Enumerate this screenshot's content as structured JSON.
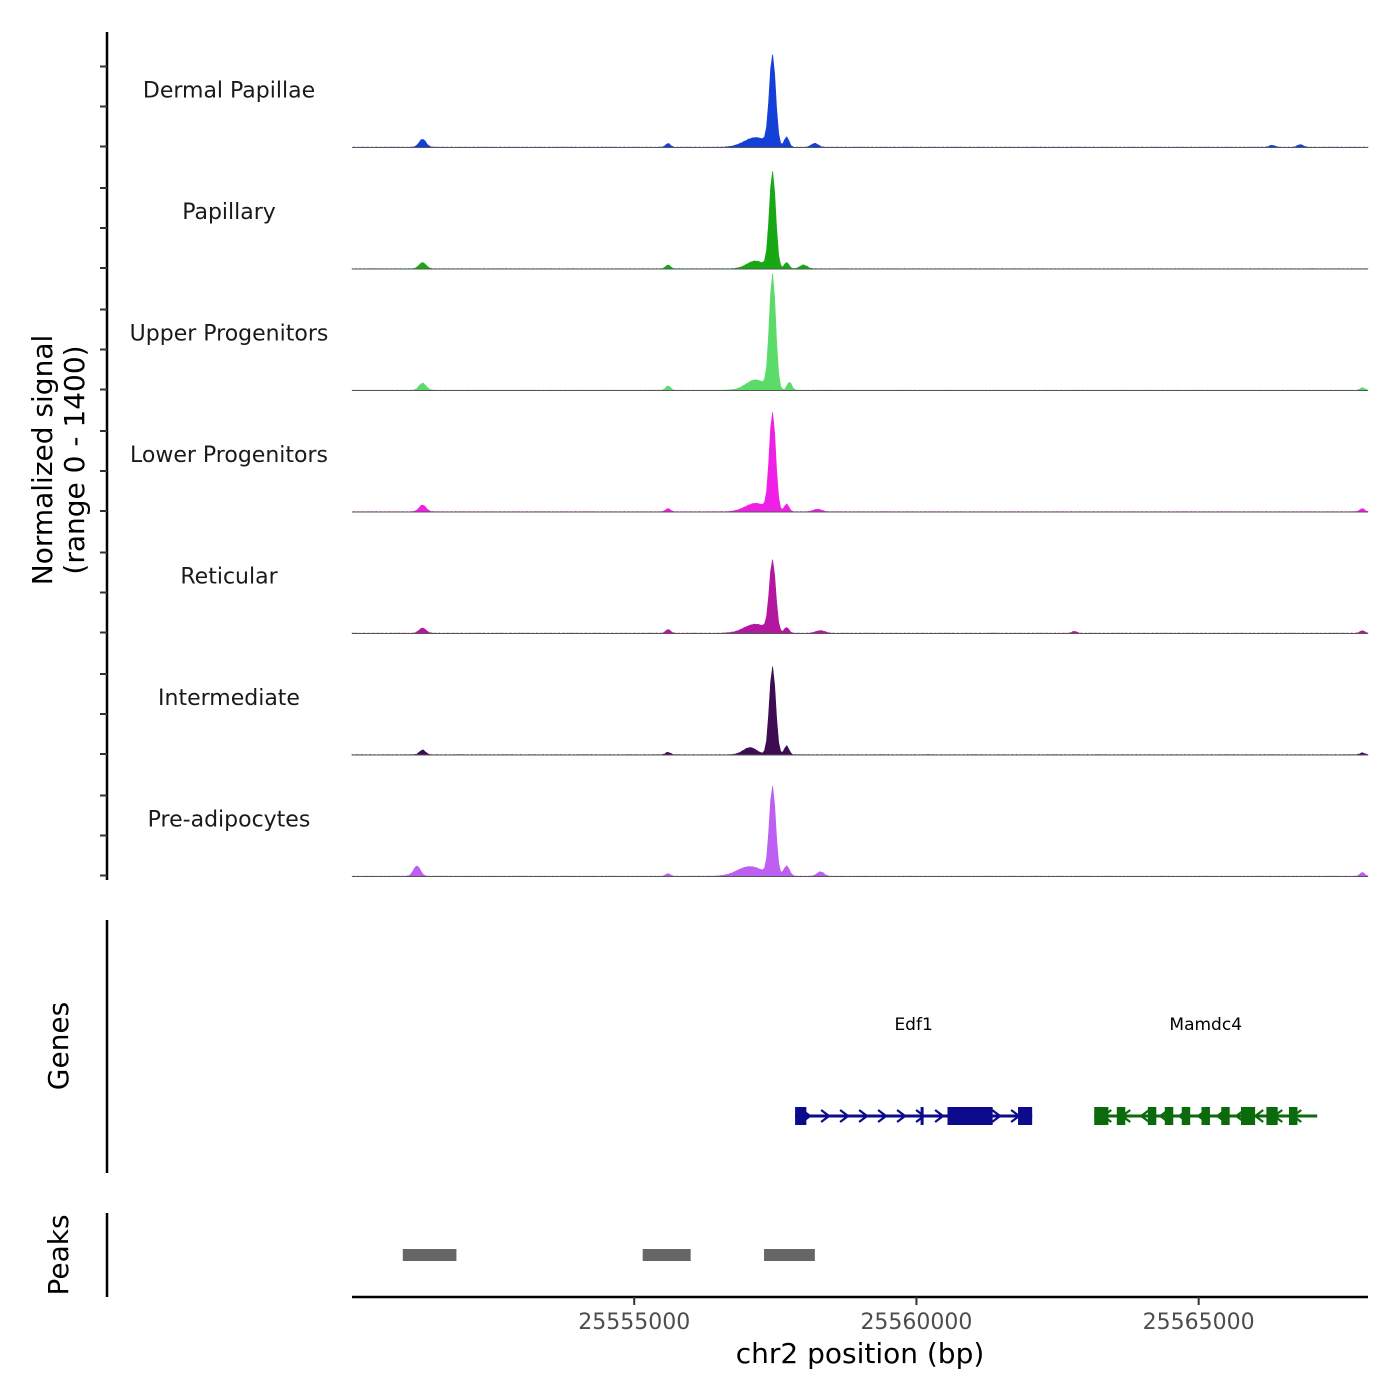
{
  "chart_data": {
    "type": "area",
    "chromosome": "chr2",
    "xlabel": "chr2 position (bp)",
    "xlim": [
      25550000,
      25568000
    ],
    "x_ticks": [
      25555000,
      25560000,
      25565000
    ],
    "x_tick_labels": [
      "25555000",
      "25560000",
      "25565000"
    ],
    "ylabel_line1": "Normalized signal",
    "ylabel_line2": "(range 0 - 1400)",
    "ylim": [
      0,
      1400
    ],
    "genes_title": "Genes",
    "peaks_title": "Peaks",
    "tracks": [
      {
        "name": "Dermal Papillae",
        "color": "#1540D8",
        "peak_height": 1400,
        "bumps": [
          [
            25551250,
            125,
            60
          ],
          [
            25555600,
            60,
            40
          ],
          [
            25557450,
            1400,
            55
          ],
          [
            25557150,
            150,
            200
          ],
          [
            25557700,
            160,
            40
          ],
          [
            25558200,
            60,
            60
          ],
          [
            25566800,
            40,
            50
          ],
          [
            25566300,
            30,
            50
          ]
        ]
      },
      {
        "name": "Papillary",
        "color": "#17A814",
        "peak_height": 1500,
        "bumps": [
          [
            25551250,
            95,
            60
          ],
          [
            25555600,
            60,
            40
          ],
          [
            25557450,
            1500,
            55
          ],
          [
            25557150,
            120,
            150
          ],
          [
            25557700,
            100,
            40
          ],
          [
            25558000,
            60,
            60
          ]
        ]
      },
      {
        "name": "Upper Progenitors",
        "color": "#5ADB6A",
        "peak_height": 1780,
        "bumps": [
          [
            25551250,
            110,
            60
          ],
          [
            25555600,
            70,
            40
          ],
          [
            25557450,
            1780,
            55
          ],
          [
            25557150,
            160,
            170
          ],
          [
            25557750,
            130,
            40
          ],
          [
            25567900,
            40,
            40
          ]
        ]
      },
      {
        "name": "Lower Progenitors",
        "color": "#F01FE6",
        "peak_height": 1520,
        "bumps": [
          [
            25551250,
            105,
            60
          ],
          [
            25555600,
            50,
            40
          ],
          [
            25557450,
            1520,
            55
          ],
          [
            25557150,
            130,
            180
          ],
          [
            25557700,
            120,
            40
          ],
          [
            25558250,
            40,
            70
          ],
          [
            25567900,
            50,
            40
          ]
        ]
      },
      {
        "name": "Reticular",
        "color": "#B3169F",
        "peak_height": 1100,
        "bumps": [
          [
            25551250,
            80,
            60
          ],
          [
            25555600,
            60,
            40
          ],
          [
            25557450,
            1100,
            55
          ],
          [
            25557150,
            140,
            200
          ],
          [
            25557700,
            90,
            40
          ],
          [
            25558300,
            40,
            80
          ],
          [
            25562800,
            30,
            40
          ],
          [
            25567900,
            40,
            40
          ]
        ]
      },
      {
        "name": "Intermediate",
        "color": "#3D0C52",
        "peak_height": 1370,
        "bumps": [
          [
            25551250,
            75,
            50
          ],
          [
            25555600,
            40,
            40
          ],
          [
            25557450,
            1370,
            55
          ],
          [
            25557050,
            110,
            120
          ],
          [
            25557700,
            140,
            40
          ],
          [
            25567900,
            30,
            40
          ]
        ]
      },
      {
        "name": "Pre-adipocytes",
        "color": "#BC5FF2",
        "peak_height": 1380,
        "bumps": [
          [
            25551150,
            160,
            60
          ],
          [
            25555600,
            40,
            40
          ],
          [
            25557450,
            1380,
            55
          ],
          [
            25557050,
            150,
            220
          ],
          [
            25557700,
            160,
            50
          ],
          [
            25558300,
            70,
            60
          ],
          [
            25567900,
            60,
            40
          ]
        ]
      }
    ],
    "genes": [
      {
        "name": "Edf1",
        "color": "#0B0B8C",
        "strand": "+",
        "start": 25557850,
        "end": 25562050,
        "exons": [
          [
            25557850,
            25558050
          ],
          [
            25560550,
            25561350
          ],
          [
            25561800,
            25562050
          ]
        ],
        "markers": [
          25560100
        ]
      },
      {
        "name": "Mamdc4",
        "color": "#0B6A0B",
        "strand": "-",
        "start": 25563150,
        "end": 25567100,
        "exons": [
          [
            25563150,
            25563400
          ],
          [
            25563550,
            25563700
          ],
          [
            25564100,
            25564250
          ],
          [
            25564400,
            25564550
          ],
          [
            25564700,
            25564850
          ],
          [
            25565050,
            25565200
          ],
          [
            25565400,
            25565550
          ],
          [
            25565750,
            25566000
          ],
          [
            25566200,
            25566400
          ],
          [
            25566600,
            25566750
          ]
        ]
      }
    ],
    "peaks": [
      [
        25550900,
        25551850
      ],
      [
        25555150,
        25556000
      ],
      [
        25557300,
        25558200
      ]
    ]
  }
}
